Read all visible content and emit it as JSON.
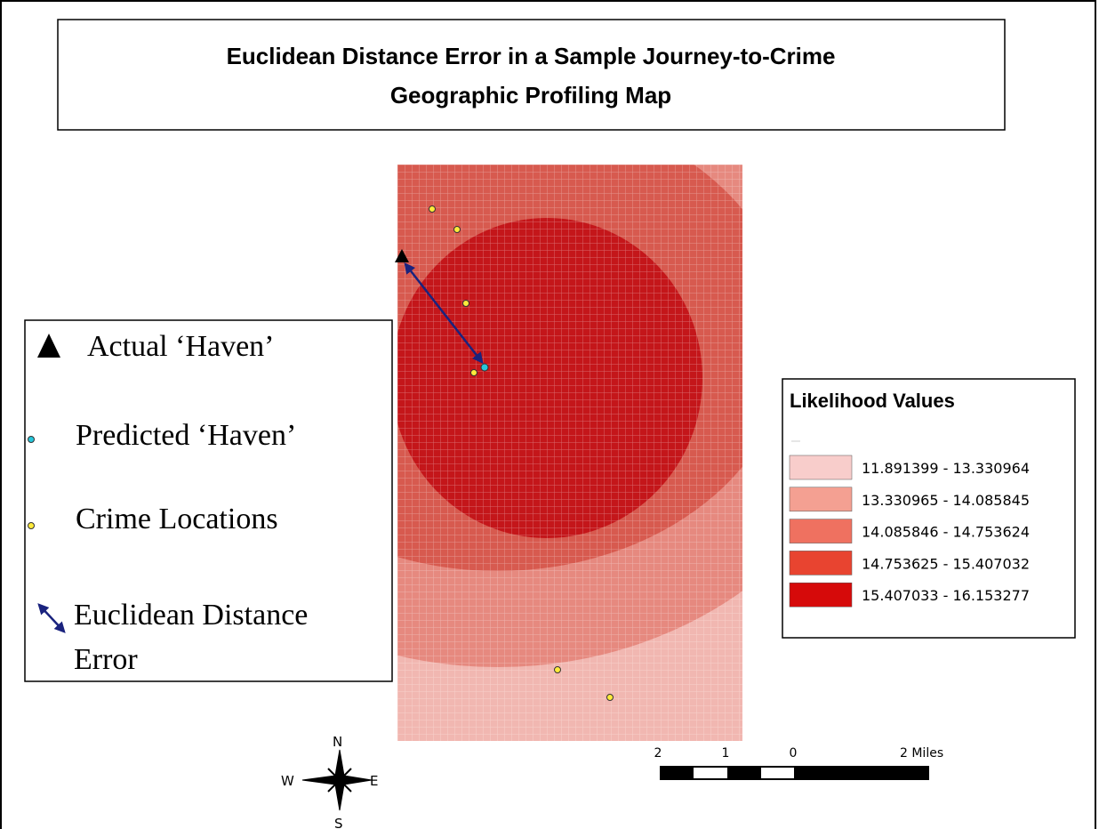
{
  "title": {
    "lines": [
      "Euclidean Distance Error in a Sample Journey-to-Crime",
      "Geographic Profiling Map"
    ]
  },
  "symbol_legend": {
    "items": [
      "Actual ‘Haven’",
      "Predicted ‘Haven’",
      "Crime Locations",
      "Euclidean Distance",
      "Error"
    ]
  },
  "likelihood_legend": {
    "title": "Likelihood Values",
    "classes": [
      "11.891399 - 13.330964",
      "13.330965 - 14.085845",
      "14.085846 - 14.753624",
      "14.753625 - 15.407032",
      "15.407033 - 16.153277"
    ]
  },
  "scale_bar": {
    "labels": [
      "2",
      "1",
      "0",
      "2 Miles"
    ]
  },
  "compass": {
    "n": "N",
    "s": "S",
    "e": "E",
    "w": "W"
  }
}
